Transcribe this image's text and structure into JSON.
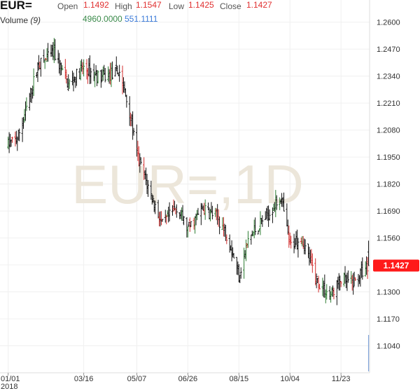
{
  "header": {
    "symbol": "EUR=",
    "open_label": "Open",
    "open_value": "1.1492",
    "high_label": "High",
    "high_value": "1.1547",
    "low_label": "Low",
    "low_value": "1.1425",
    "close_label": "Close",
    "close_value": "1.1427",
    "volume_label": "Volume",
    "volume_period": "(9)",
    "volume_value": "4960.0000",
    "volume_ma": "551.1111"
  },
  "watermark": "EUR=,1D",
  "colors": {
    "up": "#2e7d32",
    "down": "#d32f2f",
    "neutral": "#111111",
    "price_tag": "#ff1a1a",
    "grid": "#f0f0f0"
  },
  "chart_data": {
    "type": "candlestick",
    "title": "",
    "ylim": [
      1.091,
      1.268
    ],
    "y_ticks": [
      "1.2600",
      "1.2470",
      "1.2340",
      "1.2210",
      "1.2080",
      "1.1950",
      "1.1820",
      "1.1690",
      "1.1560",
      "1.1430",
      "1.1300",
      "1.1170",
      "1.1040"
    ],
    "x_ticks": [
      "01/01",
      "03/16",
      "05/07",
      "06/26",
      "08/15",
      "10/04",
      "11/23"
    ],
    "x_subtick": "2018",
    "last_price": "1.1427",
    "close_path": [
      {
        "date": "2018-01-01",
        "close": 1.201
      },
      {
        "date": "2018-01-10",
        "close": 1.204
      },
      {
        "date": "2018-01-20",
        "close": 1.22
      },
      {
        "date": "2018-01-30",
        "close": 1.239
      },
      {
        "date": "2018-02-15",
        "close": 1.245
      },
      {
        "date": "2018-03-01",
        "close": 1.23
      },
      {
        "date": "2018-03-16",
        "close": 1.238
      },
      {
        "date": "2018-04-01",
        "close": 1.233
      },
      {
        "date": "2018-04-20",
        "close": 1.236
      },
      {
        "date": "2018-05-01",
        "close": 1.215
      },
      {
        "date": "2018-05-07",
        "close": 1.196
      },
      {
        "date": "2018-05-20",
        "close": 1.178
      },
      {
        "date": "2018-06-01",
        "close": 1.162
      },
      {
        "date": "2018-06-15",
        "close": 1.171
      },
      {
        "date": "2018-06-26",
        "close": 1.16
      },
      {
        "date": "2018-07-10",
        "close": 1.17
      },
      {
        "date": "2018-07-25",
        "close": 1.166
      },
      {
        "date": "2018-08-05",
        "close": 1.156
      },
      {
        "date": "2018-08-15",
        "close": 1.138
      },
      {
        "date": "2018-08-25",
        "close": 1.156
      },
      {
        "date": "2018-09-10",
        "close": 1.166
      },
      {
        "date": "2018-09-25",
        "close": 1.176
      },
      {
        "date": "2018-10-04",
        "close": 1.152
      },
      {
        "date": "2018-10-15",
        "close": 1.157
      },
      {
        "date": "2018-10-30",
        "close": 1.136
      },
      {
        "date": "2018-11-12",
        "close": 1.128
      },
      {
        "date": "2018-11-23",
        "close": 1.136
      },
      {
        "date": "2018-12-05",
        "close": 1.134
      },
      {
        "date": "2018-12-14",
        "close": 1.14
      },
      {
        "date": "2018-12-20",
        "close": 1.1427
      }
    ]
  }
}
